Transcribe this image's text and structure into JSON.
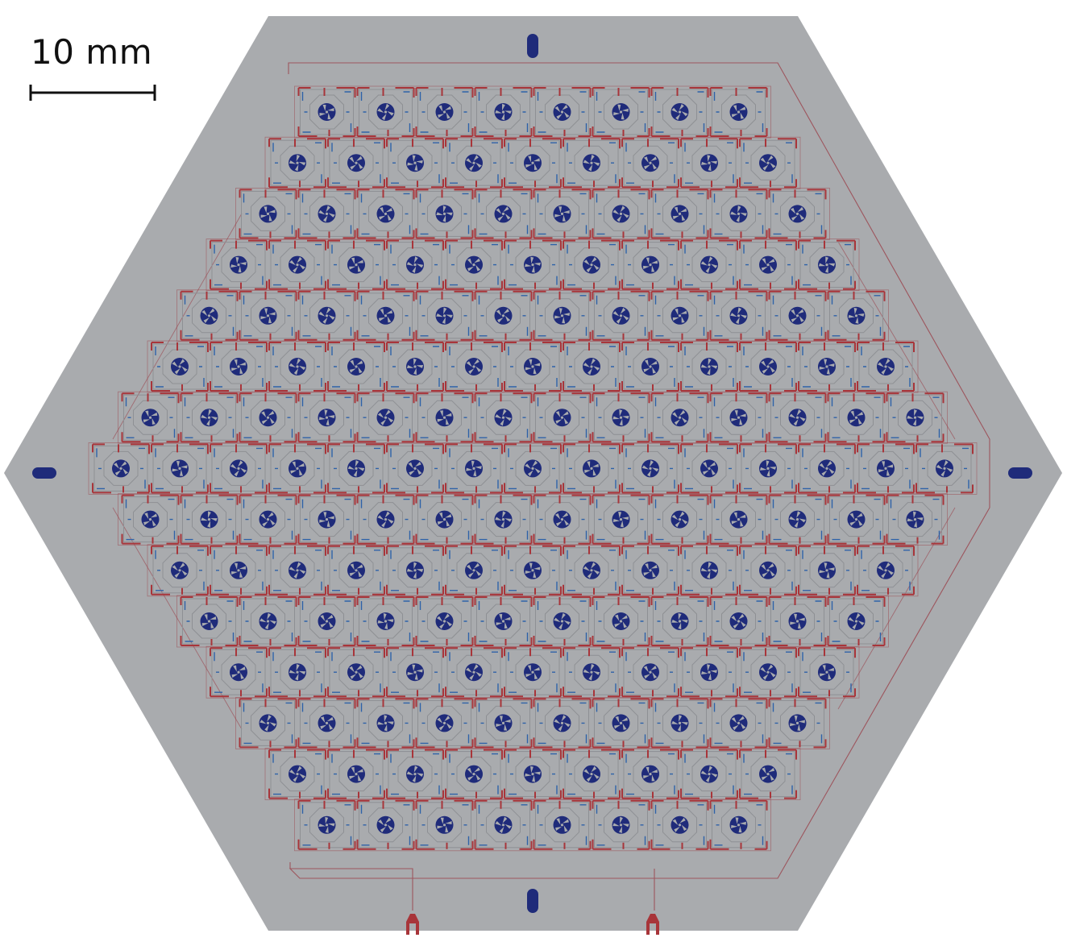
{
  "scale_bar": {
    "label": "10 mm"
  },
  "array": {
    "row_counts": [
      8,
      9,
      10,
      11,
      12,
      13,
      14,
      15,
      14,
      13,
      12,
      11,
      10,
      9,
      8
    ],
    "pixel_count": 169
  },
  "colors": {
    "wafer": "#a9abae",
    "pixel_outline": "#8e9094",
    "red_wiring": "#a8353a",
    "blue_wiring": "#2e62a8",
    "absorber": "#1f2b7a",
    "trace": "#9a4048",
    "background": "#ffffff"
  },
  "icons": {
    "alignment_mark": "rounded-slot",
    "bond_pad": "red-u-pad"
  }
}
